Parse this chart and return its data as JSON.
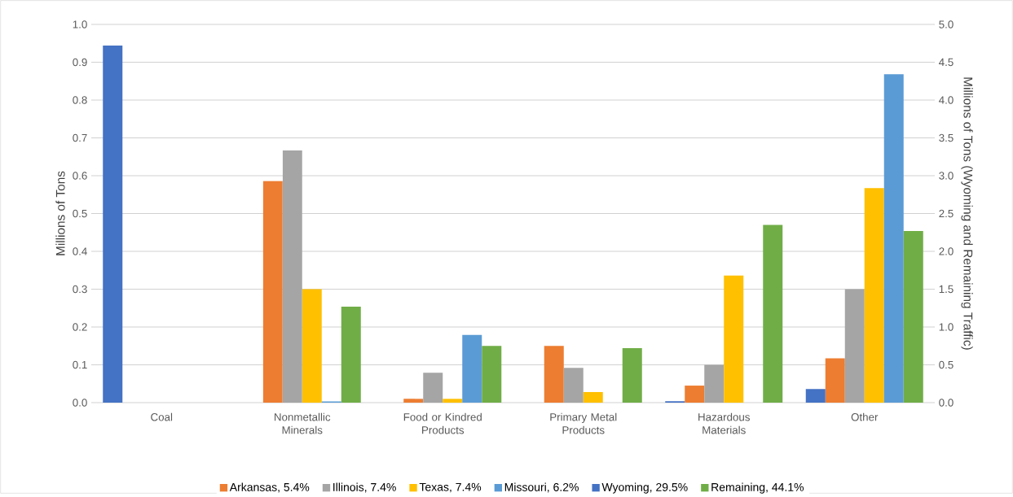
{
  "chart_data": {
    "type": "bar",
    "categories": [
      "Coal",
      "Nonmetallic Minerals",
      "Food or Kindred Products",
      "Primary Metal Products",
      "Hazardous Materials",
      "Other"
    ],
    "series": [
      {
        "name": "Arkansas, 5.4%",
        "color": "#ed7d31",
        "values": [
          null,
          0.586,
          0.01,
          0.15,
          0.045,
          0.117
        ]
      },
      {
        "name": "Illinois, 7.4%",
        "color": "#a5a5a5",
        "values": [
          null,
          0.667,
          0.079,
          0.092,
          0.1,
          0.3
        ]
      },
      {
        "name": "Texas, 7.4%",
        "color": "#ffc000",
        "values": [
          null,
          0.3,
          0.01,
          0.028,
          0.336,
          0.567
        ]
      },
      {
        "name": "Missouri, 6.2%",
        "color": "#5b9bd5",
        "values": [
          null,
          0.003,
          0.179,
          null,
          null,
          0.868
        ]
      },
      {
        "name": "Wyoming, 29.5%",
        "color": "#4472c4",
        "axis": "y2",
        "values": [
          4.72,
          null,
          null,
          null,
          0.02,
          0.18
        ]
      },
      {
        "name": "Remaining, 44.1%",
        "color": "#70ad47",
        "axis": "y2",
        "values": [
          null,
          1.27,
          0.75,
          0.72,
          2.35,
          2.27
        ]
      }
    ],
    "ylabel": "Millions of Tons",
    "y2label": "Millions of Tons (Wyoming and Remaining Traffic)",
    "ylim": [
      0,
      1
    ],
    "yticks": [
      {
        "value": 0,
        "label": "0.0"
      },
      0.1,
      0.2,
      0.3,
      0.4,
      0.5,
      0.6,
      0.7,
      0.8,
      0.9,
      {
        "value": 1,
        "label": "1.0"
      }
    ],
    "y2lim": [
      0,
      5
    ],
    "y2ticks": [
      {
        "value": 0,
        "label": "0.0"
      },
      0.5,
      {
        "value": 1,
        "label": "1.0"
      },
      1.5,
      {
        "value": 2,
        "label": "2.0"
      },
      2.5,
      {
        "value": 3,
        "label": "3.0"
      },
      3.5,
      {
        "value": 4,
        "label": "4.0"
      },
      4.5,
      {
        "value": 5,
        "label": "5.0"
      }
    ],
    "grid": "y",
    "legend": "bottom"
  }
}
